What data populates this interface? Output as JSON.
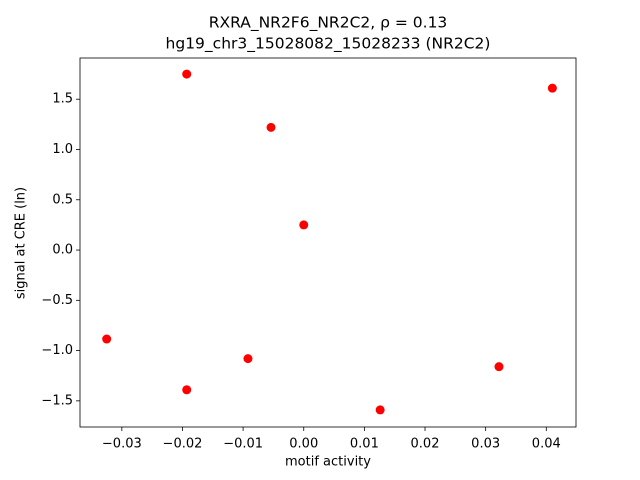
{
  "chart_data": {
    "type": "scatter",
    "title": "RXRA_NR2F6_NR2C2, ρ = 0.13",
    "subtitle": "hg19_chr3_15028082_15028233 (NR2C2)",
    "x_label": "motif activity",
    "y_label": "signal at CRE (ln)",
    "color": "#ff0000",
    "x": [
      -0.0193,
      0.041,
      -0.0054,
      0.0,
      -0.0325,
      -0.0092,
      -0.0193,
      0.0322,
      0.0126
    ],
    "values": [
      1.75,
      1.61,
      1.22,
      0.25,
      -0.885,
      -1.08,
      -1.39,
      -1.16,
      -1.59
    ],
    "xlim": [
      -0.0369,
      0.0449
    ],
    "ylim": [
      -1.76,
      1.91
    ],
    "xticks": [
      {
        "value": -0.03,
        "label": "−0.03"
      },
      {
        "value": -0.02,
        "label": "−0.02"
      },
      {
        "value": -0.01,
        "label": "−0.01"
      },
      {
        "value": 0,
        "label": "0.00"
      },
      0.01,
      0.02,
      0.03,
      0.04
    ],
    "yticks": [
      {
        "value": -1.5,
        "label": "−1.5"
      },
      {
        "value": -1,
        "label": "−1.0"
      },
      {
        "value": -0.5,
        "label": "−0.5"
      },
      {
        "value": 0,
        "label": "0.0"
      },
      0.5,
      {
        "value": 1,
        "label": "1.0"
      },
      1.5
    ],
    "grid": false
  }
}
